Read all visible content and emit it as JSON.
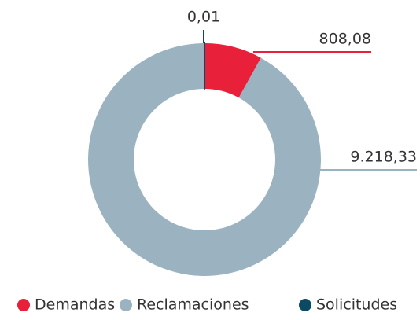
{
  "chart_data": {
    "type": "donut",
    "categories": [
      "Demandas",
      "Reclamaciones",
      "Solicitudes"
    ],
    "values": [
      808.08,
      9218.33,
      0.01
    ],
    "value_labels": [
      "808,08",
      "9.218,33",
      "0,01"
    ],
    "colors": [
      "#e8203a",
      "#9bb3c1",
      "#0b4a63"
    ],
    "legend": "bottom"
  }
}
